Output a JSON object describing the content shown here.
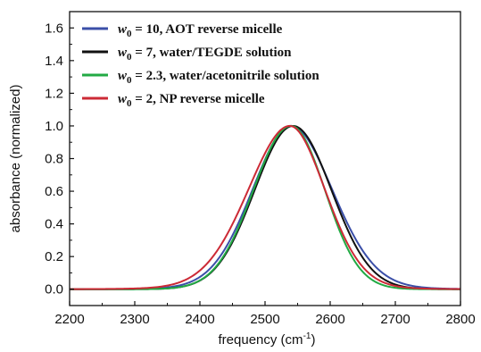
{
  "chart_data": {
    "type": "line",
    "title": "",
    "xlabel": "frequency (cm",
    "xlabel_sup": "-1",
    "xlabel_suffix": ")",
    "ylabel": "absorbance (normalized)",
    "xlim": [
      2200,
      2800
    ],
    "ylim": [
      -0.1,
      1.7
    ],
    "xticks": [
      2200,
      2300,
      2400,
      2500,
      2600,
      2700,
      2800
    ],
    "yticks": [
      0.0,
      0.2,
      0.4,
      0.6,
      0.8,
      1.0,
      1.2,
      1.4,
      1.6
    ],
    "grid": false,
    "legend_position": "top-left",
    "series": [
      {
        "name": "w0 = 10, AOT reverse micelle",
        "legend": {
          "var": "w",
          "sub": "0",
          "rest": " = 10, AOT reverse micelle"
        },
        "color": "#3b4fa8",
        "center": 2540,
        "sigma_left": 61,
        "sigma_right": 65,
        "kurtosis": 0.4
      },
      {
        "name": "w0 = 7, water/TEGDE solution",
        "legend": {
          "var": "w",
          "sub": "0",
          "rest": " = 7, water/TEGDE solution"
        },
        "color": "#111111",
        "center": 2543,
        "sigma_left": 59,
        "sigma_right": 59,
        "kurtosis": 0.0
      },
      {
        "name": "w0 = 2.3, water/acetonitrile solution",
        "legend": {
          "var": "w",
          "sub": "0",
          "rest": " = 2.3, water/acetonitrile solution"
        },
        "color": "#22aa44",
        "center": 2540,
        "sigma_left": 58,
        "sigma_right": 52,
        "kurtosis": 0.0
      },
      {
        "name": "w0 = 2, NP reverse micelle",
        "legend": {
          "var": "w",
          "sub": "0",
          "rest": " = 2, NP reverse micelle"
        },
        "color": "#cc2a36",
        "center": 2538,
        "sigma_left": 66,
        "sigma_right": 56,
        "kurtosis": 0.5
      }
    ]
  }
}
